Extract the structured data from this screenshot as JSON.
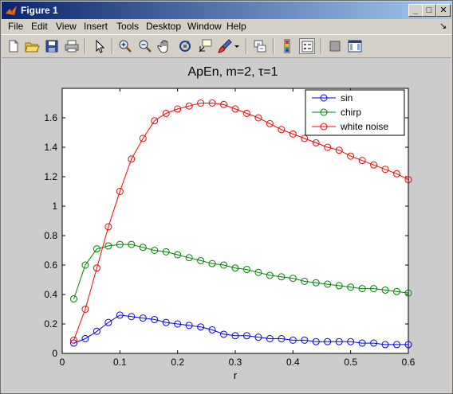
{
  "window": {
    "title": "Figure 1",
    "minimize_glyph": "_",
    "maximize_glyph": "□",
    "close_glyph": "✕"
  },
  "menu": {
    "items": [
      "File",
      "Edit",
      "View",
      "Insert",
      "Tools",
      "Desktop",
      "Window",
      "Help"
    ],
    "dock_arrow": "↘"
  },
  "toolbar": {
    "icons": [
      "new-figure-icon",
      "open-file-icon",
      "save-icon",
      "print-icon",
      "edit-plot-icon",
      "zoom-in-icon",
      "zoom-out-icon",
      "pan-icon",
      "rotate-3d-icon",
      "data-cursor-icon",
      "brush-icon",
      "link-plot-icon",
      "colorbar-icon",
      "legend-icon",
      "hide-plot-tools-icon",
      "show-plot-tools-icon"
    ]
  },
  "colors": {
    "sin": "#0000ff",
    "chirp": "#008000",
    "white_noise": "#ff0000"
  },
  "chart_data": {
    "type": "line",
    "title": "ApEn, m=2, τ=1",
    "xlabel": "r",
    "ylabel": "",
    "xlim": [
      0,
      0.6
    ],
    "ylim": [
      0,
      1.8
    ],
    "xticks": [
      "0",
      "0.1",
      "0.2",
      "0.3",
      "0.4",
      "0.5",
      "0.6"
    ],
    "yticks": [
      "0",
      "0.2",
      "0.4",
      "0.6",
      "0.8",
      "1",
      "1.2",
      "1.4",
      "1.6"
    ],
    "legend_position": "top-right",
    "marker": "circle",
    "x": [
      0.02,
      0.04,
      0.06,
      0.08,
      0.1,
      0.12,
      0.14,
      0.16,
      0.18,
      0.2,
      0.22,
      0.24,
      0.26,
      0.28,
      0.3,
      0.32,
      0.34,
      0.36,
      0.38,
      0.4,
      0.42,
      0.44,
      0.46,
      0.48,
      0.5,
      0.52,
      0.54,
      0.56,
      0.58,
      0.6
    ],
    "series": [
      {
        "name": "sin",
        "color": "#0000ff",
        "values": [
          0.07,
          0.1,
          0.15,
          0.21,
          0.26,
          0.25,
          0.24,
          0.23,
          0.21,
          0.2,
          0.19,
          0.18,
          0.16,
          0.13,
          0.12,
          0.12,
          0.11,
          0.1,
          0.1,
          0.09,
          0.09,
          0.08,
          0.08,
          0.08,
          0.08,
          0.07,
          0.07,
          0.06,
          0.06,
          0.06
        ]
      },
      {
        "name": "chirp",
        "color": "#008000",
        "values": [
          0.37,
          0.6,
          0.71,
          0.73,
          0.74,
          0.74,
          0.72,
          0.7,
          0.69,
          0.67,
          0.65,
          0.63,
          0.61,
          0.6,
          0.58,
          0.57,
          0.55,
          0.53,
          0.52,
          0.51,
          0.49,
          0.48,
          0.47,
          0.46,
          0.45,
          0.44,
          0.44,
          0.43,
          0.42,
          0.41
        ]
      },
      {
        "name": "white noise",
        "color": "#ff0000",
        "values": [
          0.09,
          0.3,
          0.58,
          0.86,
          1.1,
          1.32,
          1.46,
          1.58,
          1.63,
          1.66,
          1.68,
          1.7,
          1.7,
          1.69,
          1.66,
          1.63,
          1.6,
          1.56,
          1.52,
          1.49,
          1.46,
          1.43,
          1.4,
          1.38,
          1.34,
          1.31,
          1.28,
          1.25,
          1.22,
          1.18
        ]
      }
    ]
  }
}
